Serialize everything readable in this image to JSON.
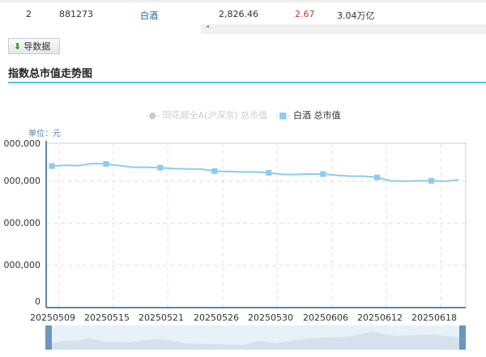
{
  "table_row": {
    "rank": "2",
    "code": "881273",
    "name": "白酒",
    "price": "2,826.46",
    "change": "2.67",
    "market_cap": "3.04万亿"
  },
  "export_button": {
    "label": "导数据",
    "icon": "download-icon"
  },
  "section_title": "指数总市值走势图",
  "chart_data": {
    "type": "line",
    "legend": [
      {
        "name": "同花顺全A(沪深京) 总市值",
        "active": false,
        "color": "#cccccc"
      },
      {
        "name": "白酒 总市值",
        "active": true,
        "color": "#8dcbef"
      }
    ],
    "unit_label": "单位：元",
    "y_tick_labels": [
      "000,000",
      "000,000",
      "000,000",
      "000,000",
      "0"
    ],
    "x_tick_labels": [
      "20250509",
      "20250515",
      "20250521",
      "20250526",
      "20250530",
      "20250606",
      "20250612",
      "20250618"
    ],
    "series": [
      {
        "name": "白酒 总市值",
        "values": [
          3.36,
          3.38,
          3.37,
          3.42,
          3.41,
          3.37,
          3.33,
          3.33,
          3.32,
          3.3,
          3.29,
          3.29,
          3.24,
          3.23,
          3.22,
          3.22,
          3.2,
          3.16,
          3.16,
          3.17,
          3.17,
          3.14,
          3.12,
          3.12,
          3.09,
          3.01,
          3.0,
          3.01,
          3.01,
          3.0,
          3.03
        ]
      }
    ],
    "ylim": [
      0,
      3.9
    ],
    "grid": true,
    "legend_position": "top-center"
  }
}
